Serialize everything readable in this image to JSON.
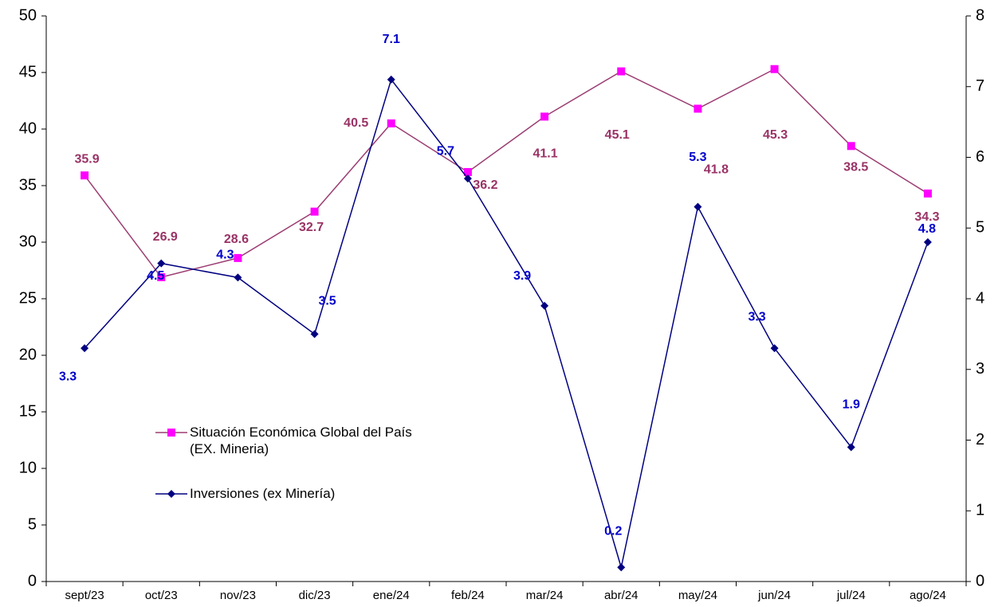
{
  "chart_data": {
    "type": "line",
    "categories": [
      "sept/23",
      "oct/23",
      "nov/23",
      "dic/23",
      "ene/24",
      "feb/24",
      "mar/24",
      "abr/24",
      "may/24",
      "jun/24",
      "jul/24",
      "ago/24"
    ],
    "series": [
      {
        "name": "Situación Económica Global del País (EX. Mineria)",
        "color": "#9b3d72",
        "marker_color": "#ff00ff",
        "label_color": "#993366",
        "marker": "square",
        "values": [
          35.9,
          26.9,
          28.6,
          32.7,
          40.5,
          36.2,
          41.1,
          45.1,
          41.8,
          45.3,
          38.5,
          34.3
        ]
      },
      {
        "name": "Inversiones (ex Minería)",
        "color": "#000080",
        "marker_color": "#000080",
        "label_color": "#0000cc",
        "marker": "diamond",
        "axis": "y2",
        "values": [
          3.3,
          4.5,
          4.3,
          3.5,
          7.1,
          5.7,
          3.9,
          0.2,
          5.3,
          3.3,
          1.9,
          4.8
        ]
      }
    ],
    "ylim": [
      0,
      50
    ],
    "yticks": [
      0,
      5,
      10,
      15,
      20,
      25,
      30,
      35,
      40,
      45,
      50
    ],
    "y2lim": [
      0,
      8
    ],
    "y2ticks": [
      0,
      1,
      2,
      3,
      4,
      5,
      6,
      7,
      8
    ],
    "grid": false
  }
}
